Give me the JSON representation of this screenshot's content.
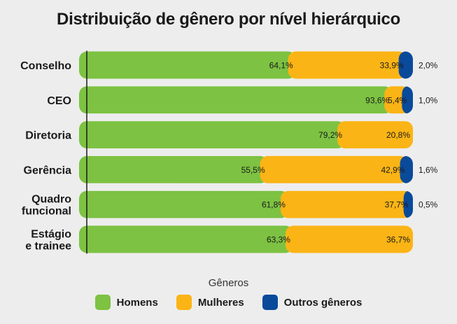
{
  "title": "Distribuição de gênero por nível hierárquico",
  "legend_title": "Gêneros",
  "chart_data": {
    "type": "bar",
    "orientation": "horizontal",
    "stacked": true,
    "title": "Distribuição de gênero por nível hierárquico",
    "categories": [
      "Conselho",
      "CEO",
      "Diretoria",
      "Gerência",
      "Quadro funcional",
      "Estágio e trainee"
    ],
    "category_lines": [
      [
        "Conselho"
      ],
      [
        "CEO"
      ],
      [
        "Diretoria"
      ],
      [
        "Gerência"
      ],
      [
        "Quadro",
        "funcional"
      ],
      [
        "Estágio",
        "e trainee"
      ]
    ],
    "series": [
      {
        "name": "Homens",
        "color": "#7dc242",
        "values": [
          64.1,
          93.6,
          79.2,
          55.5,
          61.8,
          63.3
        ],
        "labels": [
          "64,1%",
          "93,6%",
          "79,2%",
          "55,5%",
          "61,8%",
          "63,3%"
        ]
      },
      {
        "name": "Mulheres",
        "color": "#fbb415",
        "values": [
          33.9,
          5.4,
          20.8,
          42.9,
          37.7,
          36.7
        ],
        "labels": [
          "33,9%",
          "5,4%",
          "20,8%",
          "42,9%",
          "37,7%",
          "36,7%"
        ]
      },
      {
        "name": "Outros gêneros",
        "color": "#0a4a9a",
        "values": [
          2.0,
          1.0,
          0,
          1.6,
          0.5,
          0
        ],
        "labels": [
          "2,0%",
          "1,0%",
          "",
          "1,6%",
          "0,5%",
          ""
        ]
      }
    ],
    "xlim": [
      0,
      100
    ],
    "legend_position": "bottom"
  }
}
